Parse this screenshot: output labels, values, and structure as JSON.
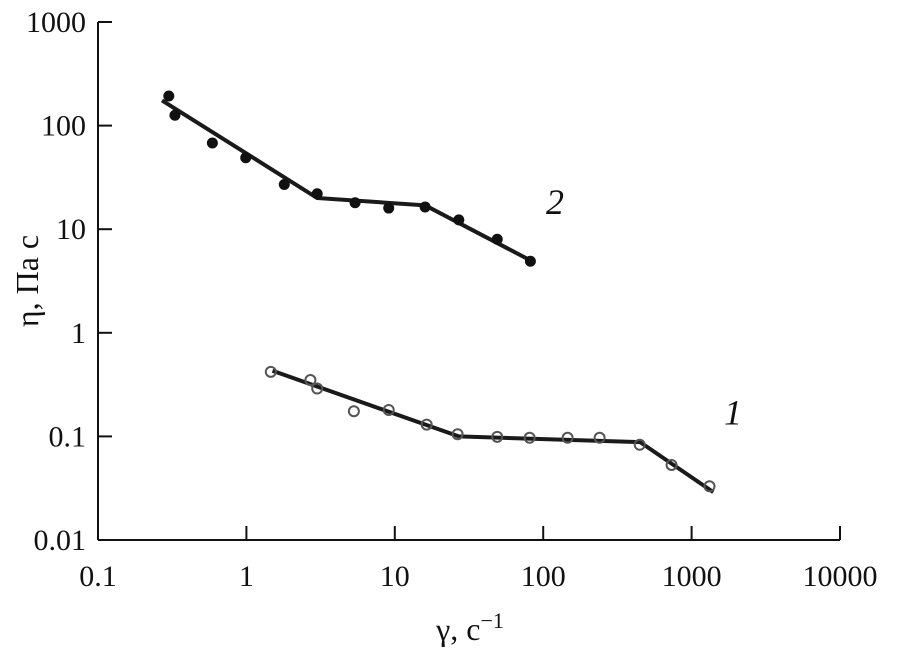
{
  "chart_data": {
    "type": "scatter",
    "title": "",
    "xlabel": "γ, с",
    "xlabel_sup": "−1",
    "ylabel": "η, Па с",
    "xscale": "log",
    "yscale": "log",
    "xlim": [
      0.1,
      10000
    ],
    "ylim": [
      0.01,
      1000
    ],
    "xticks": [
      0.1,
      1,
      10,
      100,
      1000,
      10000
    ],
    "xtick_labels": [
      "0.1",
      "1",
      "10",
      "100",
      "1000",
      "10000"
    ],
    "yticks": [
      0.01,
      0.1,
      1,
      10,
      100,
      1000
    ],
    "ytick_labels": [
      "0.01",
      "0.1",
      "1",
      "10",
      "100",
      "1000"
    ],
    "grid": false,
    "series": [
      {
        "name": "1",
        "marker": "open-circle",
        "x": [
          1.46,
          2.7,
          3.0,
          5.3,
          9.1,
          16.4,
          26.5,
          49,
          81,
          146,
          240,
          447,
          733,
          1320
        ],
        "y": [
          0.42,
          0.35,
          0.29,
          0.175,
          0.18,
          0.13,
          0.105,
          0.099,
          0.097,
          0.097,
          0.097,
          0.083,
          0.053,
          0.033
        ],
        "fit_x": [
          1.5,
          27,
          450,
          1400
        ],
        "fit_y": [
          0.43,
          0.1,
          0.088,
          0.029
        ],
        "label_at": [
          1900,
          0.13
        ]
      },
      {
        "name": "2",
        "marker": "filled-circle",
        "x": [
          0.3,
          0.33,
          0.59,
          0.99,
          1.8,
          3.0,
          5.4,
          9.1,
          16,
          27,
          49,
          82
        ],
        "y": [
          193,
          126,
          68,
          49,
          27,
          22,
          18,
          16,
          16.4,
          12.3,
          8.0,
          4.9
        ],
        "fit_x": [
          0.27,
          3.0,
          16,
          82
        ],
        "fit_y": [
          175,
          20,
          17,
          5
        ],
        "label_at": [
          120,
          14
        ]
      }
    ]
  }
}
